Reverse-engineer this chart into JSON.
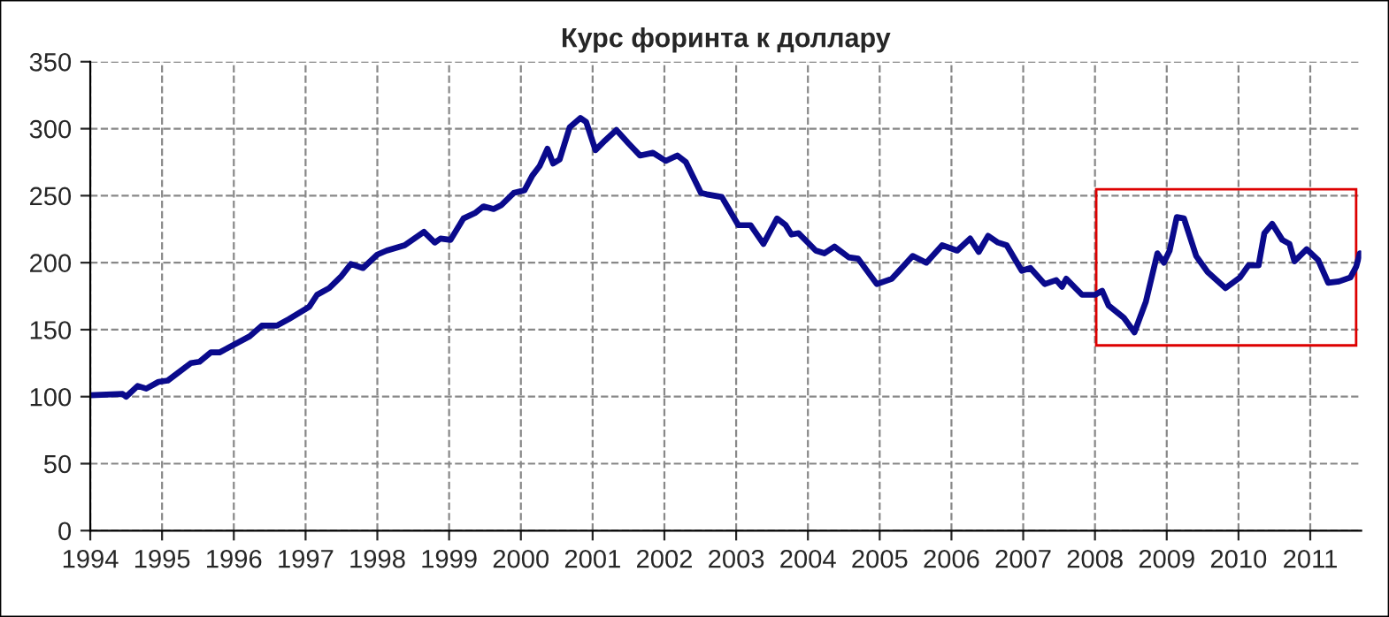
{
  "chart_data": {
    "type": "line",
    "title": "Курс форинта к доллару",
    "x": [
      1994.0,
      1994.45,
      1994.5,
      1994.66,
      1994.78,
      1994.95,
      1995.08,
      1995.4,
      1995.52,
      1995.68,
      1995.8,
      1996.22,
      1996.39,
      1996.6,
      1996.77,
      1997.05,
      1997.16,
      1997.33,
      1997.5,
      1997.63,
      1997.8,
      1998.0,
      1998.13,
      1998.38,
      1998.65,
      1998.8,
      1998.88,
      1999.02,
      1999.2,
      1999.36,
      1999.48,
      1999.62,
      1999.73,
      1999.9,
      2000.05,
      2000.16,
      2000.26,
      2000.37,
      2000.45,
      2000.54,
      2000.68,
      2000.83,
      2000.91,
      2001.04,
      2001.17,
      2001.33,
      2001.5,
      2001.66,
      2001.84,
      2002.02,
      2002.18,
      2002.3,
      2002.51,
      2002.59,
      2002.8,
      2003.03,
      2003.2,
      2003.38,
      2003.57,
      2003.69,
      2003.77,
      2003.87,
      2004.11,
      2004.23,
      2004.37,
      2004.57,
      2004.7,
      2004.96,
      2005.17,
      2005.46,
      2005.65,
      2005.87,
      2006.08,
      2006.26,
      2006.38,
      2006.51,
      2006.65,
      2006.77,
      2006.98,
      2007.1,
      2007.3,
      2007.46,
      2007.54,
      2007.6,
      2007.82,
      2008.0,
      2008.1,
      2008.19,
      2008.4,
      2008.55,
      2008.71,
      2008.87,
      2008.96,
      2009.04,
      2009.14,
      2009.24,
      2009.41,
      2009.57,
      2009.82,
      2010.02,
      2010.14,
      2010.28,
      2010.36,
      2010.47,
      2010.61,
      2010.71,
      2010.78,
      2010.95,
      2011.11,
      2011.25,
      2011.4,
      2011.56,
      2011.64,
      2011.69
    ],
    "series": [
      {
        "color": "#0a0a8c",
        "values": [
          101,
          102,
          100,
          108,
          106,
          111,
          112,
          125,
          126,
          133,
          133,
          145,
          153,
          153,
          158,
          167,
          176,
          181,
          190,
          199,
          196,
          206,
          209,
          213,
          223,
          215,
          218,
          217,
          233,
          237,
          242,
          240,
          243,
          252,
          254,
          265,
          272,
          285,
          274,
          277,
          301,
          308,
          305,
          284,
          291,
          299,
          289,
          280,
          282,
          276,
          280,
          275,
          252,
          251,
          249,
          228,
          228,
          214,
          233,
          228,
          221,
          222,
          209,
          207,
          212,
          204,
          203,
          184,
          188,
          205,
          200,
          213,
          209,
          218,
          208,
          220,
          215,
          213,
          194,
          196,
          184,
          187,
          182,
          188,
          176,
          176,
          179,
          168,
          159,
          148,
          171,
          207,
          200,
          209,
          234,
          233,
          205,
          193,
          181,
          189,
          198,
          198,
          222,
          229,
          217,
          214,
          201,
          210,
          202,
          185,
          186,
          189,
          197,
          207
        ]
      }
    ],
    "xlim": [
      1994,
      2011.71
    ],
    "xticks": [
      1994,
      1995,
      1996,
      1997,
      1998,
      1999,
      2000,
      2001,
      2002,
      2003,
      2004,
      2005,
      2006,
      2007,
      2008,
      2009,
      2010,
      2011
    ],
    "ylim": [
      0,
      350
    ],
    "yticks": [
      0,
      50,
      100,
      150,
      200,
      250,
      300,
      350
    ],
    "grid": true,
    "line_style": "solid",
    "marker": "none"
  }
}
